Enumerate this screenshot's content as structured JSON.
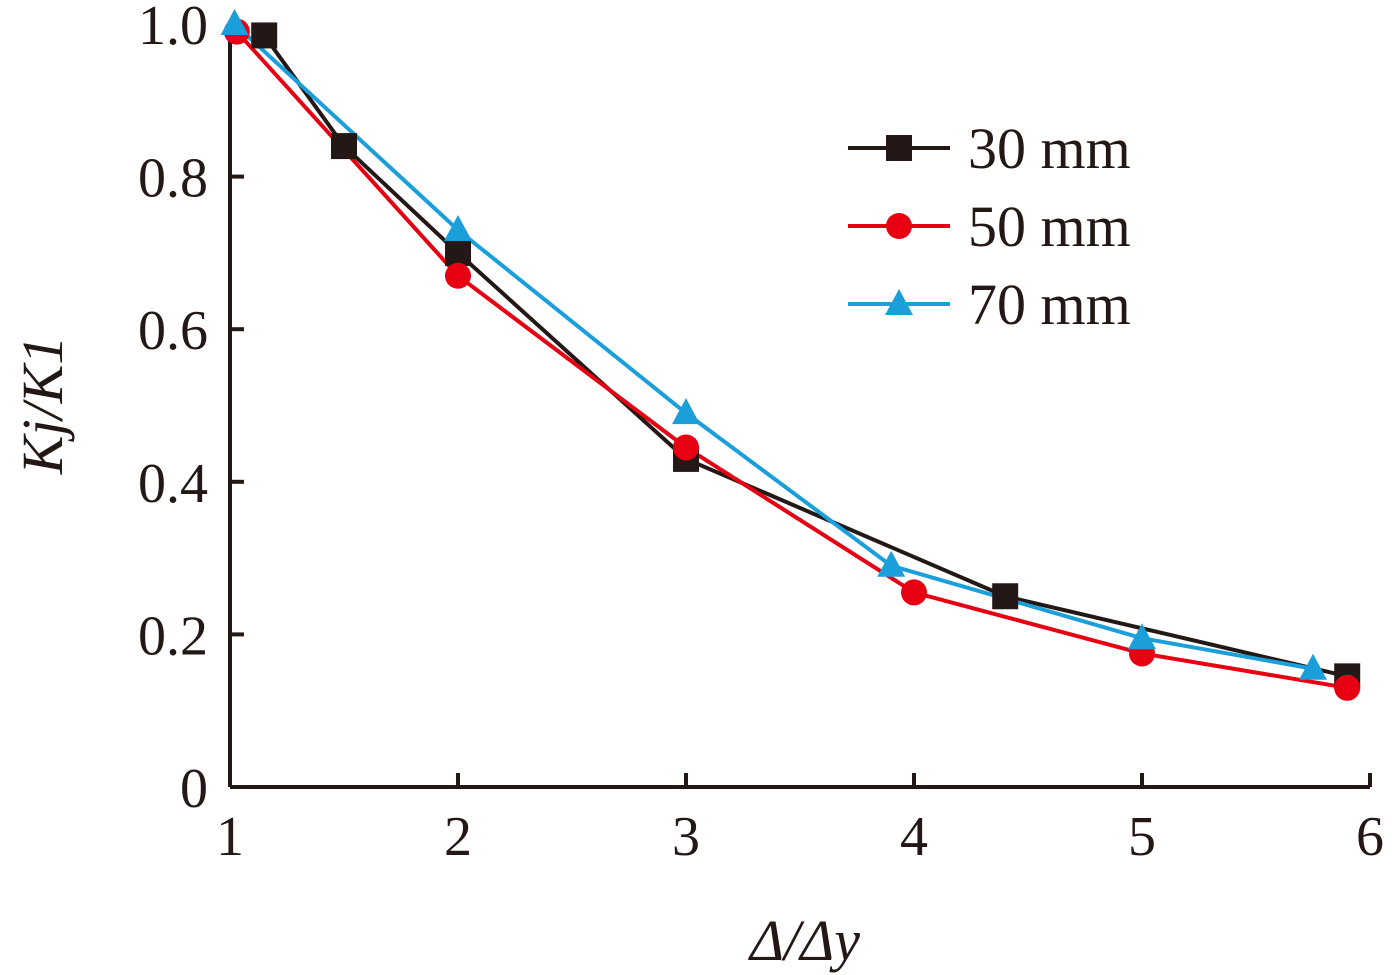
{
  "chart_data": {
    "type": "line",
    "title": "",
    "xlabel": "Δ/Δy",
    "ylabel": "Kj/K1",
    "xlim": [
      1,
      6
    ],
    "ylim": [
      0,
      1.0
    ],
    "x_ticks": [
      "1",
      "2",
      "3",
      "4",
      "5",
      "6"
    ],
    "y_ticks": [
      "0",
      "0.2",
      "0.4",
      "0.6",
      "0.8",
      "1.0"
    ],
    "legend_position": "top-right",
    "series": [
      {
        "name": "30 mm",
        "color": "#231815",
        "marker": "square",
        "x": [
          1.15,
          1.5,
          2.0,
          3.0,
          4.4,
          5.9
        ],
        "y": [
          0.985,
          0.84,
          0.7,
          0.43,
          0.25,
          0.145
        ]
      },
      {
        "name": "50 mm",
        "color": "#e60012",
        "marker": "circle",
        "x": [
          1.03,
          2.0,
          3.0,
          4.0,
          5.0,
          5.9
        ],
        "y": [
          0.99,
          0.67,
          0.445,
          0.255,
          0.175,
          0.13
        ]
      },
      {
        "name": "70 mm",
        "color": "#1a9fdb",
        "marker": "triangle",
        "x": [
          1.02,
          2.0,
          3.0,
          3.9,
          5.0,
          5.75
        ],
        "y": [
          1.0,
          0.73,
          0.49,
          0.29,
          0.195,
          0.155
        ]
      }
    ]
  }
}
